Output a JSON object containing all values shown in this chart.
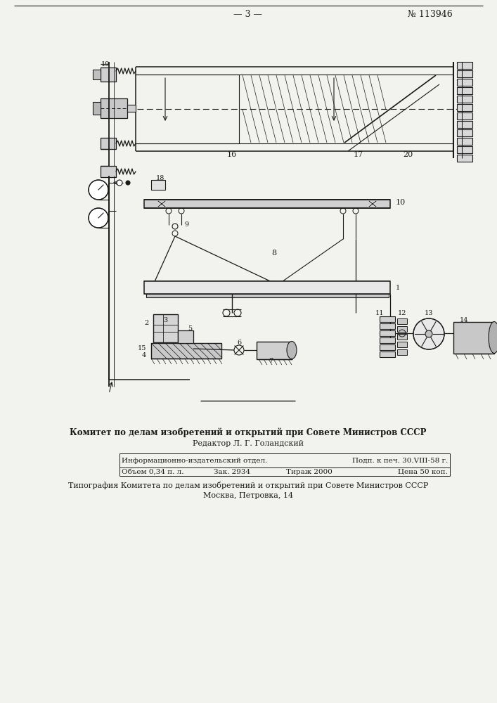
{
  "page_number": "— 3 —",
  "patent_number": "№ 113946",
  "bg_color": "#f2f2ee",
  "line_color": "#1a1a1a",
  "footer_line1": "Комитет по делам изобретений и открытий при Совете Министров СССР",
  "footer_line2": "Редактор Л. Г. Голандский",
  "table_r1c1": "Информационно-издательский отдел.",
  "table_r1c3": "Подп. к печ. 30.VIII-58 г.",
  "table_r2c1": "Объем 0,34 п. л.",
  "table_r2c2": "Зак. 2934",
  "table_r2c3": "Тираж 2000",
  "table_r2c4": "Цена 50 коп.",
  "bottom_line1": "Типография Комитета по делам изобретений и открытий при Совете Министров СССР",
  "bottom_line2": "Москва, Петровка, 14"
}
